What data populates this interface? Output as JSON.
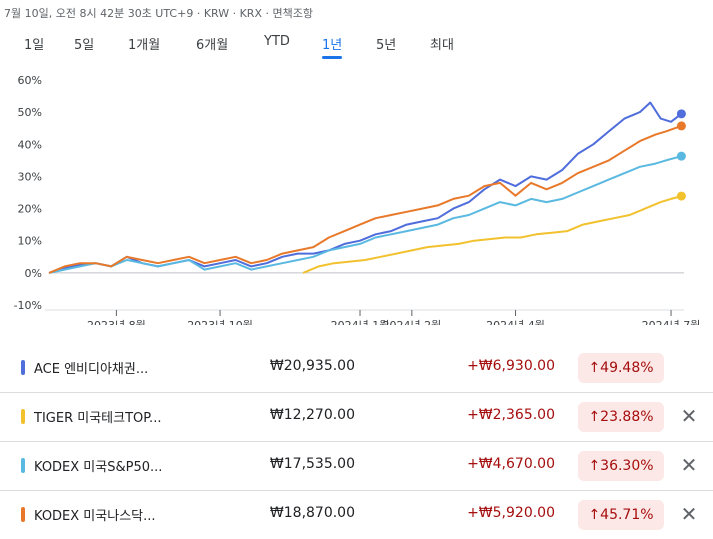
{
  "header": {
    "meta_text": "7월 10일, 오전 8시 42분 30초 UTC+9 · KRW · KRX · 면책조항"
  },
  "tabs": [
    {
      "label": "1일",
      "active": false
    },
    {
      "label": "5일",
      "active": false
    },
    {
      "label": "1개월",
      "active": false
    },
    {
      "label": "6개월",
      "active": false
    },
    {
      "label": "YTD",
      "active": false
    },
    {
      "label": "1년",
      "active": true
    },
    {
      "label": "5년",
      "active": false
    },
    {
      "label": "최대",
      "active": false
    }
  ],
  "colors": {
    "accent": "#1a73e8",
    "positive_text": "#a50e0e",
    "positive_bg": "#fce8e6",
    "grid": "#e8eaed",
    "axis": "#3c4043"
  },
  "chart_data": {
    "type": "line",
    "title": "",
    "xlabel": "",
    "ylabel": "",
    "ylim": [
      -10,
      60
    ],
    "y_ticks": [
      "60%",
      "50%",
      "40%",
      "30%",
      "20%",
      "10%",
      "0%",
      "-10%"
    ],
    "y_tick_values": [
      60,
      50,
      40,
      30,
      20,
      10,
      0,
      -10
    ],
    "x_ticks": [
      "2023년 8월",
      "2023년 10월",
      "2024년 1월",
      "2024년 2월",
      "2024년 4월",
      "2024년 7월"
    ],
    "x_tick_positions": [
      1.3,
      3.3,
      6.0,
      7.0,
      9.0,
      12.0
    ],
    "x_range": [
      0,
      12.25
    ],
    "grid": true,
    "series": [
      {
        "name": "ACE 엔비디아채권...",
        "color": "#4f6ddb",
        "x": [
          0,
          0.3,
          0.6,
          0.9,
          1.2,
          1.5,
          1.8,
          2.1,
          2.4,
          2.7,
          3.0,
          3.3,
          3.6,
          3.9,
          4.2,
          4.5,
          4.8,
          5.1,
          5.4,
          5.7,
          6.0,
          6.3,
          6.6,
          6.9,
          7.2,
          7.5,
          7.8,
          8.1,
          8.4,
          8.7,
          9.0,
          9.3,
          9.6,
          9.9,
          10.2,
          10.5,
          10.8,
          11.1,
          11.4,
          11.6,
          11.8,
          12.0,
          12.2
        ],
        "values": [
          0,
          1.5,
          2.5,
          3,
          2,
          5,
          3,
          2,
          3,
          4,
          2,
          3,
          4,
          2,
          3,
          5,
          6,
          6,
          7,
          9,
          10,
          12,
          13,
          15,
          16,
          17,
          20,
          22,
          26,
          29,
          27,
          30,
          29,
          32,
          37,
          40,
          44,
          48,
          50,
          53,
          48,
          47,
          49.48
        ]
      },
      {
        "name": "TIGER 미국테크TOP...",
        "color": "#f2c12e",
        "x": [
          4.9,
          5.2,
          5.5,
          5.8,
          6.1,
          6.4,
          6.7,
          7.0,
          7.3,
          7.6,
          7.9,
          8.2,
          8.5,
          8.8,
          9.1,
          9.4,
          9.7,
          10.0,
          10.3,
          10.6,
          10.9,
          11.2,
          11.5,
          11.8,
          12.0,
          12.2
        ],
        "values": [
          0,
          2,
          3,
          3.5,
          4,
          5,
          6,
          7,
          8,
          8.5,
          9,
          10,
          10.5,
          11,
          11,
          12,
          12.5,
          13,
          15,
          16,
          17,
          18,
          20,
          22,
          23,
          23.88
        ]
      },
      {
        "name": "KODEX 미국S&P50...",
        "color": "#5ab9e0",
        "x": [
          0,
          0.3,
          0.6,
          0.9,
          1.2,
          1.5,
          1.8,
          2.1,
          2.4,
          2.7,
          3.0,
          3.3,
          3.6,
          3.9,
          4.2,
          4.5,
          4.8,
          5.1,
          5.4,
          5.7,
          6.0,
          6.3,
          6.6,
          6.9,
          7.2,
          7.5,
          7.8,
          8.1,
          8.4,
          8.7,
          9.0,
          9.3,
          9.6,
          9.9,
          10.2,
          10.5,
          10.8,
          11.1,
          11.4,
          11.7,
          11.9,
          12.2
        ],
        "values": [
          0,
          1,
          2,
          3,
          2,
          4,
          3,
          2,
          3,
          4,
          1,
          2,
          3,
          1,
          2,
          3,
          4,
          5,
          7,
          8,
          9,
          11,
          12,
          13,
          14,
          15,
          17,
          18,
          20,
          22,
          21,
          23,
          22,
          23,
          25,
          27,
          29,
          31,
          33,
          34,
          35,
          36.3
        ]
      },
      {
        "name": "KODEX 미국나스닥...",
        "color": "#e8792a",
        "x": [
          0,
          0.3,
          0.6,
          0.9,
          1.2,
          1.5,
          1.8,
          2.1,
          2.4,
          2.7,
          3.0,
          3.3,
          3.6,
          3.9,
          4.2,
          4.5,
          4.8,
          5.1,
          5.4,
          5.7,
          6.0,
          6.3,
          6.6,
          6.9,
          7.2,
          7.5,
          7.8,
          8.1,
          8.4,
          8.7,
          9.0,
          9.3,
          9.6,
          9.9,
          10.2,
          10.5,
          10.8,
          11.1,
          11.4,
          11.7,
          11.9,
          12.2
        ],
        "values": [
          0,
          2,
          3,
          3,
          2,
          5,
          4,
          3,
          4,
          5,
          3,
          4,
          5,
          3,
          4,
          6,
          7,
          8,
          11,
          13,
          15,
          17,
          18,
          19,
          20,
          21,
          23,
          24,
          27,
          28,
          24,
          28,
          26,
          28,
          31,
          33,
          35,
          38,
          41,
          43,
          44,
          45.71
        ]
      }
    ]
  },
  "rows": [
    {
      "name": "ACE 엔비디아채권...",
      "price": "₩20,935.00",
      "change": "+₩6,930.00",
      "pct": "↑49.48%",
      "color": "#4f6ddb",
      "removable": false
    },
    {
      "name": "TIGER 미국테크TOP...",
      "price": "₩12,270.00",
      "change": "+₩2,365.00",
      "pct": "↑23.88%",
      "color": "#f2c12e",
      "removable": true
    },
    {
      "name": "KODEX 미국S&P50...",
      "price": "₩17,535.00",
      "change": "+₩4,670.00",
      "pct": "↑36.30%",
      "color": "#5ab9e0",
      "removable": true
    },
    {
      "name": "KODEX 미국나스닥...",
      "price": "₩18,870.00",
      "change": "+₩5,920.00",
      "pct": "↑45.71%",
      "color": "#e8792a",
      "removable": true
    }
  ],
  "icons": {
    "close": "close-icon",
    "up_arrow": "arrow-up-icon"
  }
}
